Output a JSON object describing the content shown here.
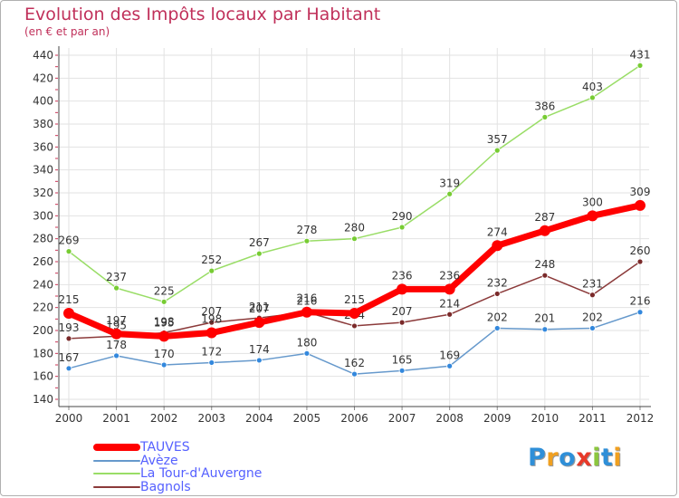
{
  "header": {
    "title": "Evolution des Impôts locaux par Habitant",
    "subtitle": "(en € et par an)"
  },
  "logo": {
    "text": "Proxiti",
    "letters": [
      {
        "ch": "P",
        "color": "#2f8fd8"
      },
      {
        "ch": "r",
        "color": "#f0a020"
      },
      {
        "ch": "o",
        "color": "#2f8fd8"
      },
      {
        "ch": "x",
        "color": "#e83a2a"
      },
      {
        "ch": "i",
        "color": "#8cc63e"
      },
      {
        "ch": "t",
        "color": "#2f8fd8"
      },
      {
        "ch": "i",
        "color": "#f0a020"
      }
    ]
  },
  "chart_data": {
    "type": "line",
    "title": "Evolution des Impôts locaux par Habitant",
    "subtitle": "(en € et par an)",
    "x": [
      "2000",
      "2001",
      "2002",
      "2003",
      "2004",
      "2005",
      "2006",
      "2007",
      "2008",
      "2009",
      "2010",
      "2011",
      "2012"
    ],
    "ylim": [
      140,
      440
    ],
    "yticks": [
      140,
      160,
      180,
      200,
      220,
      240,
      260,
      280,
      300,
      320,
      340,
      360,
      380,
      400,
      420,
      440
    ],
    "grid": true,
    "legend_position": "bottom-left",
    "series": [
      {
        "name": "La Tour-d'Auvergne",
        "color": "#99dd66",
        "marker": "#77cc33",
        "values": [
          269,
          237,
          225,
          252,
          267,
          278,
          280,
          290,
          319,
          357,
          386,
          403,
          431
        ]
      },
      {
        "name": "Avèze",
        "color": "#6699cc",
        "marker": "#3388dd",
        "values": [
          167,
          178,
          170,
          172,
          174,
          180,
          162,
          165,
          169,
          202,
          201,
          202,
          216
        ]
      },
      {
        "name": "Bagnols",
        "color": "#8b3a3a",
        "marker": "#7a2a2a",
        "values": [
          193,
          195,
          198,
          207,
          211,
          216,
          204,
          207,
          214,
          232,
          248,
          231,
          260
        ]
      },
      {
        "name": "TAUVES",
        "color": "#ff0000",
        "marker": "#ff0000",
        "values": [
          215,
          197,
          195,
          198,
          207,
          216,
          215,
          236,
          236,
          274,
          287,
          300,
          309
        ]
      }
    ],
    "legend_order": [
      "TAUVES",
      "Avèze",
      "La Tour-d'Auvergne",
      "Bagnols"
    ]
  }
}
